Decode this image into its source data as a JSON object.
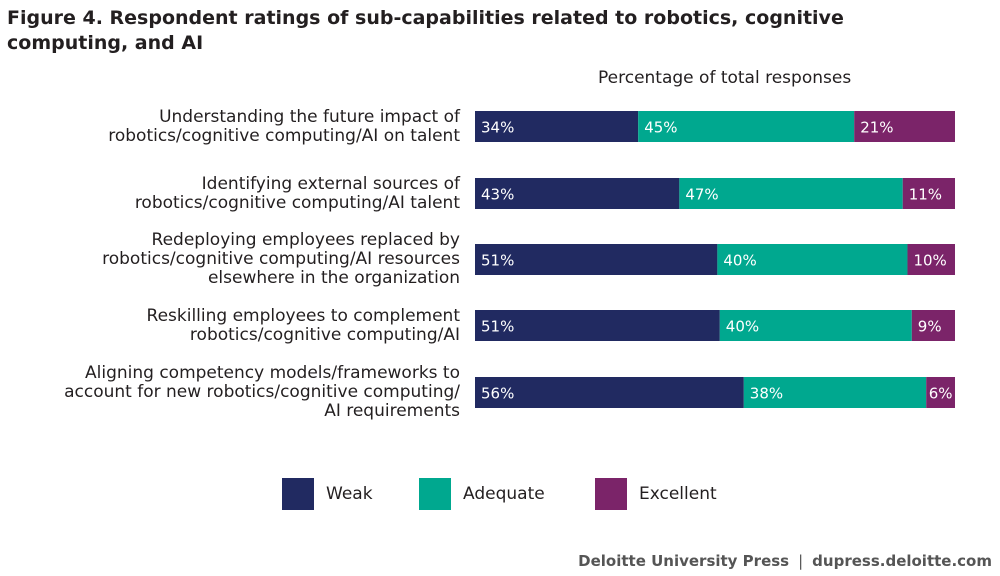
{
  "chart_data": {
    "type": "bar",
    "orientation": "horizontal",
    "stacked": true,
    "title": "Figure 4. Respondent ratings of sub-capabilities related to robotics, cognitive computing, and AI",
    "subtitle": "Percentage of total responses",
    "categories": [
      [
        "Understanding the future impact of",
        "robotics/cognitive computing/AI on talent"
      ],
      [
        "Identifying external sources of",
        "robotics/cognitive computing/AI talent"
      ],
      [
        "Redeploying employees replaced by",
        "robotics/cognitive computing/AI resources",
        "elsewhere in the organization"
      ],
      [
        "Reskilling employees to complement",
        "robotics/cognitive computing/AI"
      ],
      [
        "Aligning competency models/frameworks to",
        "account for new robotics/cognitive computing/",
        "AI requirements"
      ]
    ],
    "series": [
      {
        "name": "Weak",
        "color": "#212a61",
        "values": [
          34,
          43,
          51,
          51,
          56
        ]
      },
      {
        "name": "Adequate",
        "color": "#00a88f",
        "values": [
          45,
          47,
          40,
          40,
          38
        ]
      },
      {
        "name": "Excellent",
        "color": "#7b2469",
        "values": [
          21,
          11,
          10,
          9,
          6
        ]
      }
    ],
    "value_suffix": "%",
    "legend_position": "bottom",
    "grid": false
  },
  "footer": {
    "source": "Deloitte University Press",
    "separator": "|",
    "url": "dupress.deloitte.com"
  }
}
